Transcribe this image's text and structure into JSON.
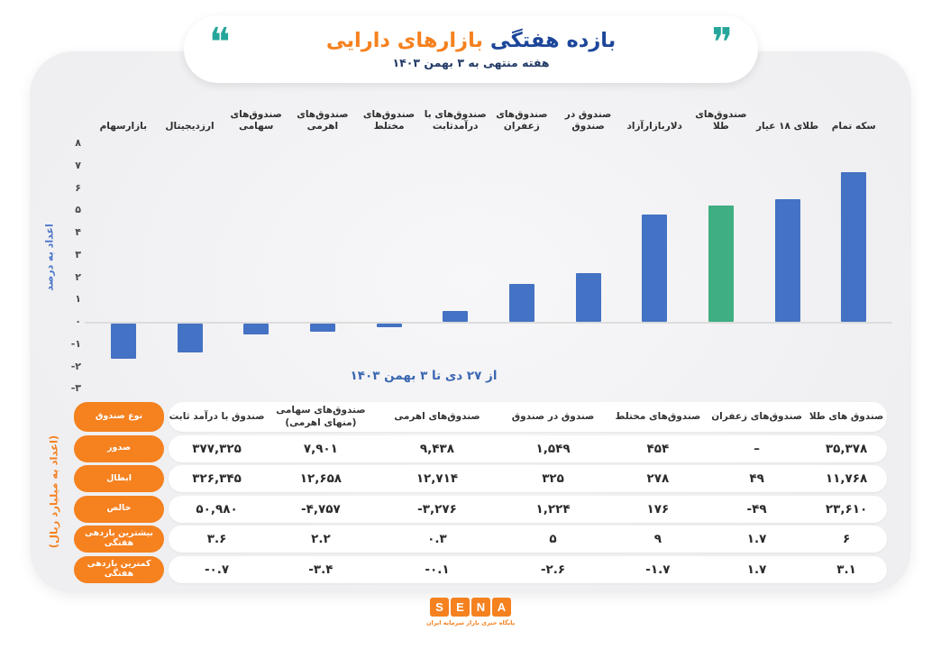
{
  "header": {
    "title_part1": "بازده هفتگی",
    "title_part2": "بازارهای دارایی",
    "subtitle": "هفته منتهی به ۳ بهمن ۱۴۰۳",
    "quote_open_icon": "❝",
    "quote_close_icon": "❞"
  },
  "chart_data": [
    {
      "type": "bar",
      "title": "بازده هفتگی بازارهای دارایی",
      "caption": "از ۲۷ دی تا ۳ بهمن ۱۴۰۳",
      "ylabel": "اعداد به درصد",
      "ylim": [
        -3,
        8
      ],
      "grid": false,
      "categories": [
        "بازارسهام",
        "ارزدیجیتال",
        "صندوق‌های\nسهامی",
        "صندوق‌های\nاهرمی",
        "صندوق‌های\nمختلط",
        "صندوق‌های با\nدرآمدثابت",
        "صندوق‌های\nزعفران",
        "صندوق در\nصندوق",
        "دلاربازارآزاد",
        "صندوق‌های طلا",
        "طلای ۱۸ عیار",
        "سکه تمام"
      ],
      "values": [
        -1.6,
        -1.3,
        -0.5,
        -0.4,
        -0.2,
        0.5,
        1.7,
        2.2,
        4.8,
        5.2,
        5.5,
        6.7
      ],
      "highlight_index": 9,
      "y_ticks": [
        {
          "value": 8,
          "label": "۸"
        },
        {
          "value": 7,
          "label": "۷"
        },
        {
          "value": 6,
          "label": "۶"
        },
        {
          "value": 5,
          "label": "۵"
        },
        {
          "value": 4,
          "label": "۴"
        },
        {
          "value": 3,
          "label": "۳"
        },
        {
          "value": 2,
          "label": "۲"
        },
        {
          "value": 1,
          "label": "۱"
        },
        {
          "value": 0,
          "label": "۰"
        },
        {
          "value": -1,
          "label": "-۱"
        },
        {
          "value": -2,
          "label": "-۲"
        },
        {
          "value": -3,
          "label": "-۳"
        }
      ]
    },
    {
      "type": "table",
      "unit_label": "(اعداد به میلیارد ریال)",
      "corner_label": "نوع صندوق",
      "columns": [
        "صندوق با درآمد ثابت",
        "صندوق‌های سهامی\n(منهای اهرمی)",
        "صندوق‌های اهرمی",
        "صندوق در صندوق",
        "صندوق‌های مختلط",
        "صندوق‌های زعفران",
        "صندوق های طلا"
      ],
      "rows": [
        {
          "label": "صدور",
          "values": [
            "۳۷۷,۳۲۵",
            "۷,۹۰۱",
            "۹,۴۳۸",
            "۱,۵۴۹",
            "۴۵۴",
            "–",
            "۳۵,۳۷۸"
          ]
        },
        {
          "label": "ابطال",
          "values": [
            "۳۲۶,۳۴۵",
            "۱۲,۶۵۸",
            "۱۲,۷۱۴",
            "۳۲۵",
            "۲۷۸",
            "۴۹",
            "۱۱,۷۶۸"
          ]
        },
        {
          "label": "خالص",
          "values": [
            "۵۰,۹۸۰",
            "-۴,۷۵۷",
            "-۳,۲۷۶",
            "۱,۲۲۴",
            "۱۷۶",
            "-۴۹",
            "۲۳,۶۱۰"
          ]
        },
        {
          "label": "بیشترین بازدهی هفتگی",
          "values": [
            "۳.۶",
            "۲.۲",
            "۰.۳",
            "۵",
            "۹",
            "۱.۷",
            "۶"
          ]
        },
        {
          "label": "کمترین بازدهی هفتگی",
          "values": [
            "-۰.۷",
            "-۳.۴",
            "-۰.۱",
            "-۲.۶",
            "-۱.۷",
            "۱.۷",
            "۳.۱"
          ]
        }
      ]
    }
  ],
  "footer": {
    "logo_letters": [
      "S",
      "E",
      "N",
      "A"
    ],
    "tagline": "پایگاه خبری بازار سرمایه ایران"
  },
  "colors": {
    "accent_orange": "#F5811F",
    "bar_blue": "#4472C4",
    "bar_green": "#3FAE83",
    "teal": "#26A69A",
    "title_blue": "#1C4699",
    "navy": "#223A66",
    "caption_blue": "#3A67B1",
    "axis_blue": "#4C77C9",
    "card_bg": "#EFEFF1"
  }
}
